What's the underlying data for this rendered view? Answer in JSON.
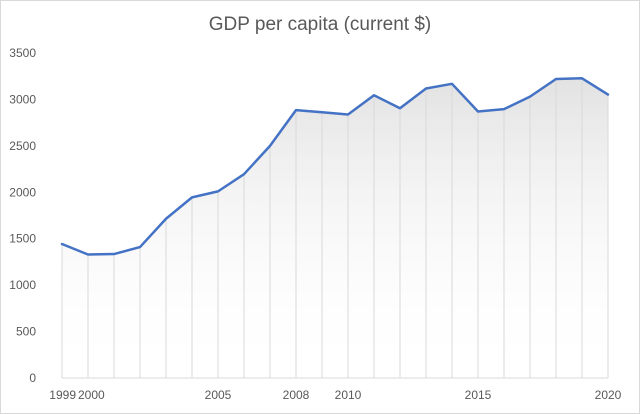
{
  "chart_data": {
    "type": "area",
    "title": "GDP per capita (current $)",
    "xlabel": "",
    "ylabel": "",
    "ylim": [
      0,
      3500
    ],
    "y_ticks": [
      0,
      500,
      1000,
      1500,
      2000,
      2500,
      3000,
      3500
    ],
    "x": [
      1999,
      2000,
      2001,
      2002,
      2003,
      2004,
      2005,
      2006,
      2007,
      2008,
      2009,
      2010,
      2011,
      2012,
      2013,
      2014,
      2015,
      2016,
      2017,
      2018,
      2019,
      2020
    ],
    "x_tick_labels": [
      "1999",
      "2000",
      "2005",
      "2008",
      "2010",
      "2015",
      "2020"
    ],
    "series": [
      {
        "values": [
          1443,
          1330,
          1335,
          1410,
          1715,
          1945,
          2010,
          2195,
          2500,
          2885,
          2862,
          2838,
          3045,
          2905,
          3118,
          3168,
          2870,
          2895,
          3030,
          3220,
          3228,
          3053
        ]
      }
    ],
    "grid": true,
    "legend": "none",
    "colors": {
      "line": "#4472c4",
      "fill_top": "#e4e4e4",
      "grid": "#d9d9d9"
    }
  }
}
